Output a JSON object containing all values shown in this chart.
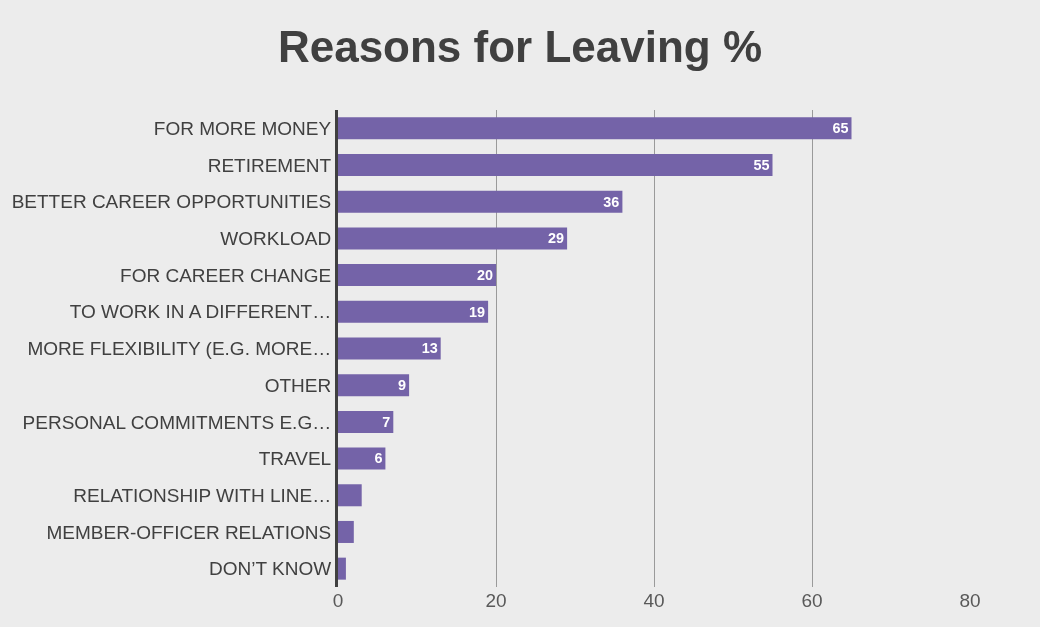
{
  "chart_data": {
    "type": "bar",
    "orientation": "horizontal",
    "title": "Reasons for Leaving %",
    "categories": [
      "FOR MORE MONEY",
      "RETIREMENT",
      "BETTER CAREER OPPORTUNITIES",
      "WORKLOAD",
      "FOR CAREER CHANGE",
      "TO WORK IN A DIFFERENT…",
      "MORE FLEXIBILITY (E.G. MORE…",
      "OTHER",
      "PERSONAL COMMITMENTS E.G…",
      "TRAVEL",
      "RELATIONSHIP WITH LINE…",
      "MEMBER-OFFICER RELATIONS",
      "DON’T KNOW"
    ],
    "values": [
      65,
      55,
      36,
      29,
      20,
      19,
      13,
      9,
      7,
      6,
      3,
      2,
      1
    ],
    "value_labels": [
      "65",
      "55",
      "36",
      "29",
      "20",
      "19",
      "13",
      "9",
      "7",
      "6",
      null,
      null,
      null
    ],
    "color": "#7463a8",
    "xlim": [
      0,
      80
    ],
    "xticks": [
      0,
      20,
      40,
      60,
      80
    ],
    "grid": "x"
  }
}
